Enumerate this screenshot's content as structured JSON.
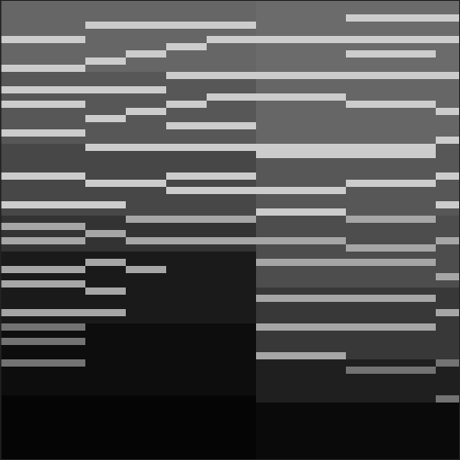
{
  "chart_data": {
    "type": "heatmap",
    "xlim": [
      0,
      512
    ],
    "ylim": [
      0,
      64
    ],
    "zlim": [
      0,
      100
    ],
    "x_edges": [
      0,
      10,
      50,
      95,
      140,
      185,
      230,
      285,
      335,
      385,
      435,
      485,
      512
    ],
    "tick_labels": false,
    "values": [
      [
        40,
        40,
        40,
        40,
        40,
        80,
        40,
        40,
        40,
        80,
        34,
        34,
        80,
        34,
        80,
        34,
        34,
        34,
        80,
        34,
        28,
        28,
        28,
        28,
        80,
        28,
        28,
        28,
        80,
        28,
        20,
        65,
        20,
        65,
        20,
        10,
        10,
        65,
        10,
        65,
        10,
        10,
        10,
        65,
        10,
        45,
        5,
        45,
        5,
        5,
        45,
        5,
        5,
        5,
        5,
        2,
        2,
        2,
        2,
        2,
        2,
        2,
        2,
        2
      ],
      [
        40,
        40,
        40,
        40,
        40,
        80,
        40,
        40,
        40,
        80,
        34,
        34,
        80,
        34,
        80,
        34,
        34,
        34,
        80,
        34,
        28,
        28,
        28,
        28,
        80,
        28,
        28,
        28,
        80,
        28,
        20,
        65,
        20,
        65,
        20,
        10,
        10,
        65,
        10,
        65,
        10,
        10,
        10,
        65,
        10,
        45,
        5,
        45,
        5,
        5,
        45,
        5,
        5,
        5,
        5,
        2,
        2,
        2,
        2,
        2,
        2,
        2,
        2,
        2
      ],
      [
        40,
        40,
        40,
        40,
        40,
        80,
        40,
        40,
        40,
        80,
        34,
        34,
        80,
        34,
        80,
        34,
        34,
        34,
        80,
        34,
        28,
        28,
        28,
        28,
        80,
        28,
        28,
        28,
        80,
        28,
        20,
        65,
        20,
        65,
        20,
        10,
        10,
        65,
        10,
        65,
        10,
        10,
        10,
        65,
        10,
        45,
        5,
        45,
        5,
        5,
        45,
        5,
        5,
        5,
        5,
        2,
        2,
        2,
        2,
        2,
        2,
        2,
        2,
        2
      ],
      [
        40,
        40,
        40,
        80,
        40,
        40,
        40,
        40,
        80,
        40,
        34,
        34,
        80,
        34,
        34,
        34,
        80,
        34,
        34,
        34,
        80,
        28,
        28,
        28,
        28,
        80,
        28,
        28,
        80,
        28,
        20,
        20,
        65,
        20,
        20,
        10,
        65,
        10,
        10,
        10,
        65,
        10,
        10,
        65,
        10,
        5,
        5,
        5,
        5,
        5,
        5,
        5,
        5,
        5,
        5,
        2,
        2,
        2,
        2,
        2,
        2,
        2,
        2,
        2
      ],
      [
        40,
        40,
        40,
        80,
        40,
        40,
        40,
        80,
        40,
        40,
        34,
        34,
        80,
        34,
        34,
        80,
        34,
        34,
        34,
        34,
        80,
        28,
        28,
        28,
        28,
        80,
        28,
        28,
        28,
        28,
        65,
        20,
        20,
        65,
        20,
        10,
        10,
        65,
        10,
        10,
        10,
        10,
        10,
        10,
        10,
        5,
        5,
        5,
        5,
        5,
        5,
        5,
        5,
        5,
        5,
        2,
        2,
        2,
        2,
        2,
        2,
        2,
        2,
        2
      ],
      [
        40,
        40,
        40,
        80,
        40,
        40,
        80,
        40,
        40,
        40,
        80,
        34,
        34,
        34,
        80,
        34,
        34,
        80,
        34,
        34,
        80,
        28,
        28,
        28,
        80,
        28,
        80,
        28,
        28,
        28,
        65,
        20,
        20,
        65,
        20,
        10,
        10,
        10,
        10,
        10,
        10,
        10,
        10,
        10,
        10,
        5,
        5,
        5,
        5,
        5,
        5,
        5,
        5,
        5,
        5,
        2,
        2,
        2,
        2,
        2,
        2,
        2,
        2,
        2
      ],
      [
        40,
        40,
        40,
        80,
        40,
        80,
        40,
        40,
        40,
        40,
        80,
        34,
        34,
        80,
        34,
        34,
        34,
        80,
        34,
        34,
        80,
        28,
        28,
        28,
        80,
        28,
        80,
        28,
        28,
        28,
        65,
        20,
        20,
        65,
        20,
        10,
        10,
        10,
        10,
        10,
        10,
        10,
        10,
        10,
        10,
        5,
        5,
        5,
        5,
        5,
        5,
        5,
        5,
        5,
        5,
        2,
        2,
        2,
        2,
        2,
        2,
        2,
        2,
        2
      ],
      [
        42,
        42,
        42,
        42,
        42,
        80,
        42,
        42,
        42,
        42,
        80,
        40,
        40,
        80,
        40,
        40,
        40,
        40,
        40,
        40,
        80,
        80,
        34,
        34,
        34,
        34,
        80,
        34,
        34,
        80,
        30,
        30,
        30,
        65,
        30,
        30,
        65,
        30,
        30,
        30,
        22,
        65,
        22,
        22,
        22,
        65,
        22,
        22,
        22,
        65,
        12,
        12,
        12,
        12,
        12,
        12,
        4,
        4,
        4,
        4,
        4,
        4,
        4,
        4
      ],
      [
        42,
        42,
        42,
        42,
        42,
        80,
        42,
        42,
        42,
        42,
        80,
        40,
        40,
        80,
        40,
        40,
        40,
        40,
        40,
        40,
        80,
        80,
        34,
        34,
        34,
        34,
        80,
        34,
        34,
        80,
        30,
        30,
        30,
        65,
        30,
        30,
        65,
        30,
        30,
        30,
        22,
        65,
        22,
        22,
        22,
        65,
        22,
        22,
        22,
        65,
        12,
        12,
        12,
        12,
        12,
        12,
        4,
        4,
        4,
        4,
        4,
        4,
        4,
        4
      ],
      [
        42,
        42,
        80,
        42,
        42,
        80,
        42,
        80,
        42,
        42,
        80,
        40,
        40,
        40,
        80,
        40,
        40,
        40,
        40,
        40,
        80,
        80,
        34,
        34,
        34,
        80,
        34,
        34,
        34,
        34,
        65,
        30,
        30,
        30,
        65,
        30,
        65,
        30,
        30,
        30,
        22,
        65,
        22,
        22,
        22,
        65,
        22,
        22,
        22,
        22,
        12,
        45,
        12,
        12,
        12,
        12,
        4,
        4,
        4,
        4,
        4,
        4,
        4,
        4
      ],
      [
        42,
        42,
        80,
        42,
        42,
        80,
        42,
        80,
        42,
        42,
        80,
        40,
        40,
        40,
        80,
        40,
        40,
        40,
        40,
        40,
        80,
        80,
        34,
        34,
        34,
        80,
        34,
        34,
        34,
        34,
        65,
        30,
        30,
        30,
        65,
        30,
        65,
        30,
        30,
        30,
        22,
        65,
        22,
        22,
        22,
        65,
        22,
        22,
        22,
        22,
        12,
        45,
        12,
        12,
        12,
        12,
        4,
        4,
        4,
        4,
        4,
        4,
        4,
        4
      ],
      [
        42,
        42,
        80,
        42,
        42,
        80,
        42,
        42,
        42,
        42,
        80,
        40,
        40,
        40,
        40,
        80,
        40,
        40,
        40,
        80,
        34,
        34,
        34,
        34,
        80,
        34,
        34,
        34,
        80,
        34,
        30,
        30,
        30,
        65,
        30,
        30,
        30,
        30,
        65,
        30,
        22,
        22,
        22,
        65,
        22,
        22,
        22,
        22,
        22,
        22,
        45,
        12,
        12,
        12,
        12,
        45,
        4,
        4,
        4,
        4,
        4,
        4,
        4,
        4
      ]
    ]
  }
}
